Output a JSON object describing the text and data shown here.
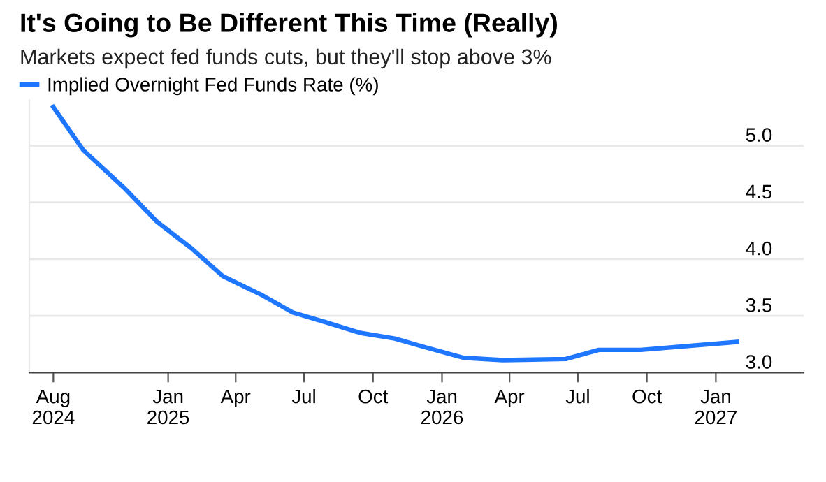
{
  "chart_data": {
    "type": "line",
    "title": "It's Going to Be Different This Time (Really)",
    "subtitle": "Markets expect fed funds cuts, but they'll stop above 3%",
    "series": [
      {
        "name": "Implied Overnight Fed Funds Rate (%)",
        "color": "#1f77ff",
        "x": [
          "2024-08-01",
          "2024-09-10",
          "2024-11-03",
          "2024-12-17",
          "2025-02-02",
          "2025-03-15",
          "2025-05-04",
          "2025-06-16",
          "2025-08-01",
          "2025-09-14",
          "2025-10-30",
          "2025-12-06",
          "2026-01-30",
          "2026-03-23",
          "2026-06-15",
          "2026-07-29",
          "2026-09-23",
          "2027-01-29"
        ],
        "values": [
          5.34,
          4.96,
          4.63,
          4.33,
          4.09,
          3.85,
          3.69,
          3.53,
          3.44,
          3.35,
          3.3,
          3.23,
          3.13,
          3.11,
          3.12,
          3.2,
          3.2,
          3.27
        ]
      }
    ],
    "xlim": [
      "2024-06-30",
      "2027-04-28"
    ],
    "ylim": [
      3.0,
      5.4
    ],
    "xticks": [
      {
        "value": "2024-08-01",
        "label": "Aug\n2024"
      },
      {
        "value": "2025-01-01",
        "label": "Jan\n2025"
      },
      {
        "value": "2025-04-01",
        "label": "Apr"
      },
      {
        "value": "2025-07-01",
        "label": "Jul"
      },
      {
        "value": "2025-10-01",
        "label": "Oct"
      },
      {
        "value": "2026-01-01",
        "label": "Jan\n2026"
      },
      {
        "value": "2026-04-01",
        "label": "Apr"
      },
      {
        "value": "2026-07-01",
        "label": "Jul"
      },
      {
        "value": "2026-10-01",
        "label": "Oct"
      },
      {
        "value": "2027-01-01",
        "label": "Jan\n2027"
      }
    ],
    "yticks": [
      {
        "value": 3.0,
        "label": "3.0"
      },
      {
        "value": 3.5,
        "label": "3.5"
      },
      {
        "value": 4.0,
        "label": "4.0"
      },
      {
        "value": 4.5,
        "label": "4.5"
      },
      {
        "value": 5.0,
        "label": "5.0"
      }
    ],
    "grid": "y",
    "legend": "top left",
    "marker": "none",
    "line_style": "solid"
  }
}
